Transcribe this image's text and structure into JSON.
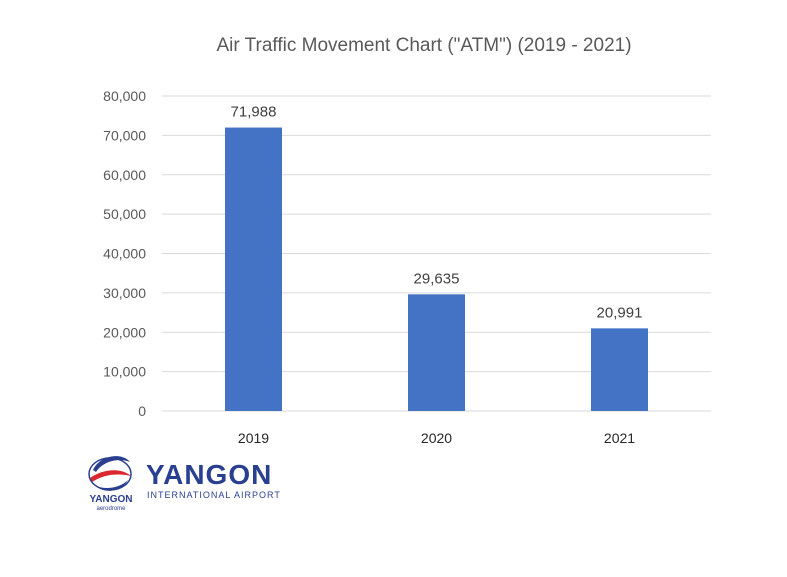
{
  "chart_data": {
    "type": "bar",
    "title": "Air Traffic Movement Chart (\"ATM\") (2019 - 2021)",
    "categories": [
      "2019",
      "2020",
      "2021"
    ],
    "values": [
      71988,
      29635,
      20991
    ],
    "value_labels": [
      "71,988",
      "29,635",
      "20,991"
    ],
    "y_ticks": [
      "0",
      "10,000",
      "20,000",
      "30,000",
      "40,000",
      "50,000",
      "60,000",
      "70,000",
      "80,000"
    ],
    "ylim": [
      0,
      80000
    ],
    "grid": true,
    "bar_color": "#4472c4",
    "grid_color": "#d9d9d9"
  },
  "logo": {
    "wordmark": "YANGON",
    "subtitle": "INTERNATIONAL AIRPORT",
    "emblem_name": "YANGON",
    "emblem_tag": "aerodrome",
    "colors": {
      "blue": "#2a3f8f",
      "red": "#d9282f"
    }
  }
}
